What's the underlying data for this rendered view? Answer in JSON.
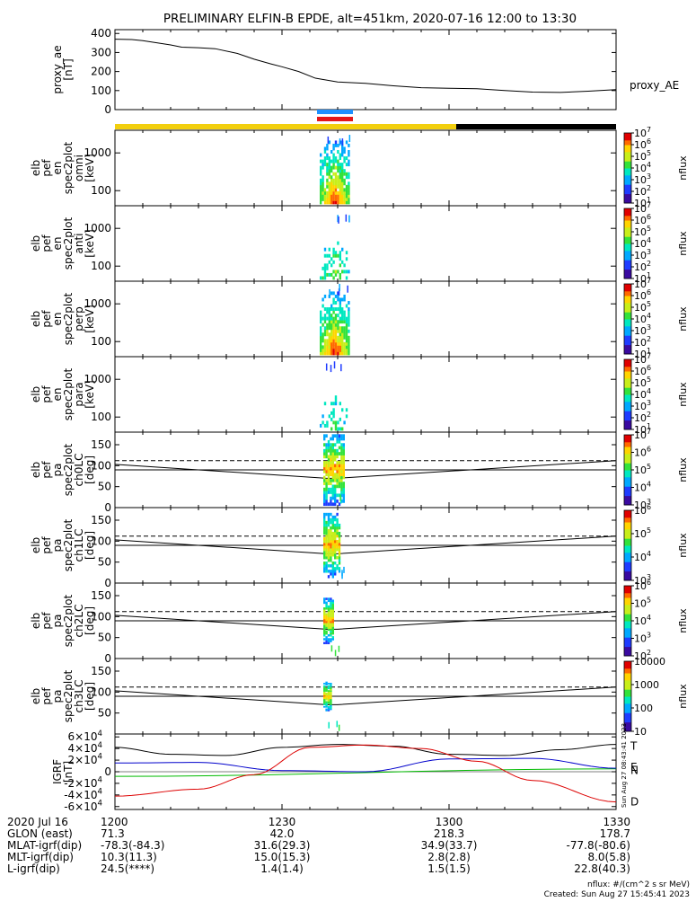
{
  "title": "PRELIMINARY ELFIN-B EPDE, alt=451km, 2020-07-16 12:00 to 13:30",
  "colors": {
    "yellow": "#f2cf0e",
    "black": "#000000",
    "blue_bar": "#1e90ff",
    "red_bar": "#e4161a",
    "green_line": "#00bb00",
    "blue_line": "#0000cc",
    "red_line": "#dd0000"
  },
  "chart_data": [
    {
      "id": "proxy_ae",
      "type": "line",
      "ylabel": [
        "proxy_ae",
        "[nT]"
      ],
      "right_label": "proxy_AE",
      "ylim": [
        0,
        420
      ],
      "yticks": [
        0,
        100,
        200,
        300,
        400
      ],
      "x": [
        0,
        3,
        5,
        10,
        12,
        15,
        18,
        22,
        25,
        28,
        30,
        33,
        36,
        40,
        45,
        50,
        55,
        60,
        65,
        70,
        75,
        80,
        85,
        90
      ],
      "y": [
        370,
        368,
        362,
        340,
        328,
        325,
        320,
        295,
        265,
        240,
        225,
        200,
        165,
        145,
        138,
        125,
        115,
        112,
        110,
        100,
        92,
        90,
        97,
        105
      ]
    },
    {
      "id": "epd_en_omni",
      "type": "heatmap",
      "ylabel": [
        "elb",
        "pef",
        "en",
        "spec2plot",
        "omni",
        "[keV]"
      ],
      "yticks": [
        "100",
        "1000"
      ],
      "cbar": {
        "label": "nflux",
        "min_exp": 1,
        "max_exp": 7,
        "ticks": [
          "10",
          "10",
          "10",
          "10",
          "10",
          "10",
          "10"
        ],
        "tick_sups": [
          "1",
          "2",
          "3",
          "4",
          "5",
          "6",
          "7"
        ]
      }
    },
    {
      "id": "epd_en_anti",
      "type": "heatmap",
      "ylabel": [
        "elb",
        "pef",
        "en",
        "spec2plot",
        "anti",
        "[keV]"
      ],
      "yticks": [
        "100",
        "1000"
      ],
      "cbar": {
        "label": "nflux",
        "min_exp": 1,
        "max_exp": 7,
        "ticks": [
          "10",
          "10",
          "10",
          "10",
          "10",
          "10",
          "10"
        ],
        "tick_sups": [
          "1",
          "2",
          "3",
          "4",
          "5",
          "6",
          "7"
        ]
      }
    },
    {
      "id": "epd_en_perp",
      "type": "heatmap",
      "ylabel": [
        "elb",
        "pef",
        "en",
        "spec2plot",
        "perp",
        "[keV]"
      ],
      "yticks": [
        "100",
        "1000"
      ],
      "cbar": {
        "label": "nflux",
        "min_exp": 1,
        "max_exp": 7,
        "ticks": [
          "10",
          "10",
          "10",
          "10",
          "10",
          "10",
          "10"
        ],
        "tick_sups": [
          "1",
          "2",
          "3",
          "4",
          "5",
          "6",
          "7"
        ]
      }
    },
    {
      "id": "epd_en_para",
      "type": "heatmap",
      "ylabel": [
        "elb",
        "pef",
        "en",
        "spec2plot",
        "para",
        "[keV]"
      ],
      "yticks": [
        "100",
        "1000"
      ],
      "cbar": {
        "label": "nflux",
        "min_exp": 1,
        "max_exp": 7,
        "ticks": [
          "10",
          "10",
          "10",
          "10",
          "10",
          "10",
          "10"
        ],
        "tick_sups": [
          "1",
          "2",
          "3",
          "4",
          "5",
          "6",
          "7"
        ]
      }
    },
    {
      "id": "epd_pa_ch0",
      "type": "heatmap",
      "ylabel": [
        "elb",
        "pef",
        "pa",
        "spec2plot",
        "ch0LC",
        "[deg]"
      ],
      "ylim": [
        0,
        180
      ],
      "yticks": [
        0,
        50,
        100,
        150
      ],
      "cbar": {
        "label": "nflux",
        "min_exp": 3,
        "max_exp": 7,
        "ticks": [
          "10",
          "10",
          "10",
          "10",
          "10"
        ],
        "tick_sups": [
          "3",
          "4",
          "5",
          "6",
          "7"
        ]
      }
    },
    {
      "id": "epd_pa_ch1",
      "type": "heatmap",
      "ylabel": [
        "elb",
        "pef",
        "pa",
        "spec2plot",
        "ch1LC",
        "[deg]"
      ],
      "ylim": [
        0,
        180
      ],
      "yticks": [
        0,
        50,
        100,
        150
      ],
      "cbar": {
        "label": "nflux",
        "min_exp": 3,
        "max_exp": 6,
        "ticks": [
          "10",
          "10",
          "10",
          "10"
        ],
        "tick_sups": [
          "3",
          "4",
          "5",
          "6"
        ]
      }
    },
    {
      "id": "epd_pa_ch2",
      "type": "heatmap",
      "ylabel": [
        "elb",
        "pef",
        "pa",
        "spec2plot",
        "ch2LC",
        "[deg]"
      ],
      "ylim": [
        0,
        180
      ],
      "yticks": [
        0,
        50,
        100,
        150
      ],
      "cbar": {
        "label": "nflux",
        "min_exp": 2,
        "max_exp": 6,
        "ticks": [
          "10",
          "10",
          "10",
          "10",
          "10"
        ],
        "tick_sups": [
          "2",
          "3",
          "4",
          "5",
          "6"
        ]
      }
    },
    {
      "id": "epd_pa_ch3",
      "type": "heatmap",
      "ylabel": [
        "elb",
        "pef",
        "pa",
        "spec2plot",
        "ch3LC",
        "[deg]"
      ],
      "ylim": [
        0,
        180
      ],
      "yticks": [
        50,
        100,
        150
      ],
      "cbar": {
        "label": "nflux",
        "ticks": [
          "10",
          "100",
          "1000",
          "10000"
        ],
        "tick_sups": [
          "",
          "",
          "",
          ""
        ]
      }
    },
    {
      "id": "igrf",
      "type": "line",
      "ylabel": [
        "IGRF",
        "[nT]"
      ],
      "ylim": [
        -65000,
        65000
      ],
      "yticks": [
        {
          "v": -60000,
          "m": "-6",
          "e": "4"
        },
        {
          "v": -40000,
          "m": "-4",
          "e": "4"
        },
        {
          "v": -20000,
          "m": "-2",
          "e": "4"
        },
        {
          "v": 0,
          "m": "0",
          "e": ""
        },
        {
          "v": 20000,
          "m": "2",
          "e": "4"
        },
        {
          "v": 40000,
          "m": "4",
          "e": "4"
        },
        {
          "v": 60000,
          "m": "6",
          "e": "4"
        }
      ],
      "series": [
        {
          "name": "T",
          "x": [
            0,
            10,
            20,
            30,
            40,
            50,
            60,
            70,
            80,
            90
          ],
          "y": [
            42000,
            30000,
            28000,
            42000,
            47000,
            44000,
            30000,
            28000,
            38000,
            47000
          ]
        },
        {
          "name": "E",
          "x": [
            0,
            90
          ],
          "y": [
            -8000,
            5000
          ]
        },
        {
          "name": "N",
          "x": [
            0,
            15,
            30,
            45,
            60,
            75,
            90
          ],
          "y": [
            15000,
            16000,
            2000,
            0,
            22000,
            23000,
            6000
          ]
        },
        {
          "name": "D",
          "x": [
            0,
            15,
            25,
            35,
            45,
            55,
            65,
            75,
            90
          ],
          "y": [
            -42000,
            -30000,
            -5000,
            42000,
            46000,
            40000,
            18000,
            -15000,
            -52000
          ]
        }
      ],
      "side_text": "Sun Aug 27 08:43:41 2023"
    }
  ],
  "orbit_table": {
    "row_labels": [
      "2020 Jul 16",
      "GLON (east)",
      "MLAT-igrf(dip)",
      "MLT-igrf(dip)",
      "L-igrf(dip)"
    ],
    "columns": [
      {
        "time": "1200",
        "values": [
          "71.3",
          "-78.3(-84.3)",
          "10.3(11.3)",
          "24.5(****)"
        ]
      },
      {
        "time": "1230",
        "values": [
          "42.0",
          "31.6(29.3)",
          "15.0(15.3)",
          "1.4(1.4)"
        ]
      },
      {
        "time": "1300",
        "values": [
          "218.3",
          "34.9(33.7)",
          "2.8(2.8)",
          "1.5(1.5)"
        ]
      },
      {
        "time": "1330",
        "values": [
          "178.7",
          "-77.8(-80.6)",
          "8.0(5.8)",
          "22.8(40.3)"
        ]
      }
    ]
  },
  "footer": {
    "units": "nflux: #/(cm^2 s sr MeV)",
    "created": "Created: Sun Aug 27 15:45:41 2023"
  }
}
